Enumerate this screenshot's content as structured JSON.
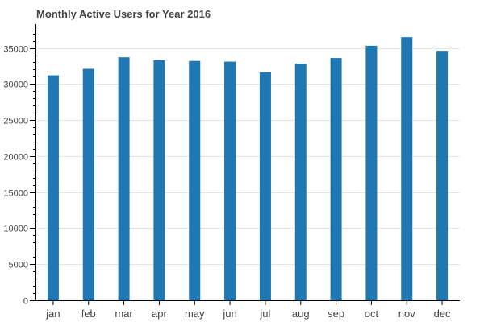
{
  "chart_data": {
    "type": "bar",
    "title": "Monthly Active Users for Year 2016",
    "xlabel": "",
    "ylabel": "",
    "categories": [
      "jan",
      "feb",
      "mar",
      "apr",
      "may",
      "jun",
      "jul",
      "aug",
      "sep",
      "oct",
      "nov",
      "dec"
    ],
    "values": [
      31200,
      32100,
      33700,
      33300,
      33200,
      33100,
      31600,
      32800,
      33600,
      35300,
      36500,
      34600
    ],
    "ylim": [
      0,
      38300
    ],
    "yticks": [
      "0",
      "5000",
      "10000",
      "15000",
      "20000",
      "25000",
      "30000",
      "35000"
    ],
    "grid": "horizontal",
    "bar_color": "#1f77b4"
  }
}
